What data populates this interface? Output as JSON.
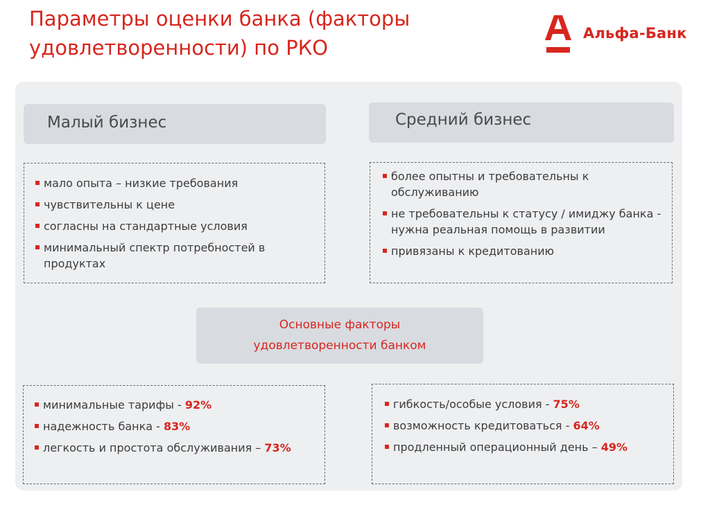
{
  "title": {
    "line1": "Параметры оценки банка (факторы",
    "line2": "удовлетворенности) по РКО"
  },
  "logo": {
    "text": "Альфа-Банк",
    "brand_color": "#d7261e"
  },
  "small_business": {
    "header": "Малый бизнес",
    "traits": [
      "мало опыта – низкие требования",
      "чувствительны к цене",
      "согласны на стандартные условия",
      "минимальный спектр потребностей в продуктах"
    ],
    "factors": [
      {
        "label": "минимальные тарифы - ",
        "value": "92%"
      },
      {
        "label": "надежность банка - ",
        "value": "83%"
      },
      {
        "label": "легкость и простота обслуживания – ",
        "value": "73%"
      }
    ]
  },
  "medium_business": {
    "header": "Средний бизнес",
    "traits": [
      "более опытны и требовательны к обслуживанию",
      "не требовательны к статусу / имиджу банка  - нужна  реальная помощь в развитии",
      "привязаны к кредитованию"
    ],
    "factors": [
      {
        "label": "гибкость/особые условия - ",
        "value": "75%"
      },
      {
        "label": "возможность кредитоваться - ",
        "value": "64%"
      },
      {
        "label": "продленный операционный день – ",
        "value": "49%"
      }
    ]
  },
  "center": {
    "line1": "Основные факторы",
    "line2": "удовлетворенности банком"
  }
}
